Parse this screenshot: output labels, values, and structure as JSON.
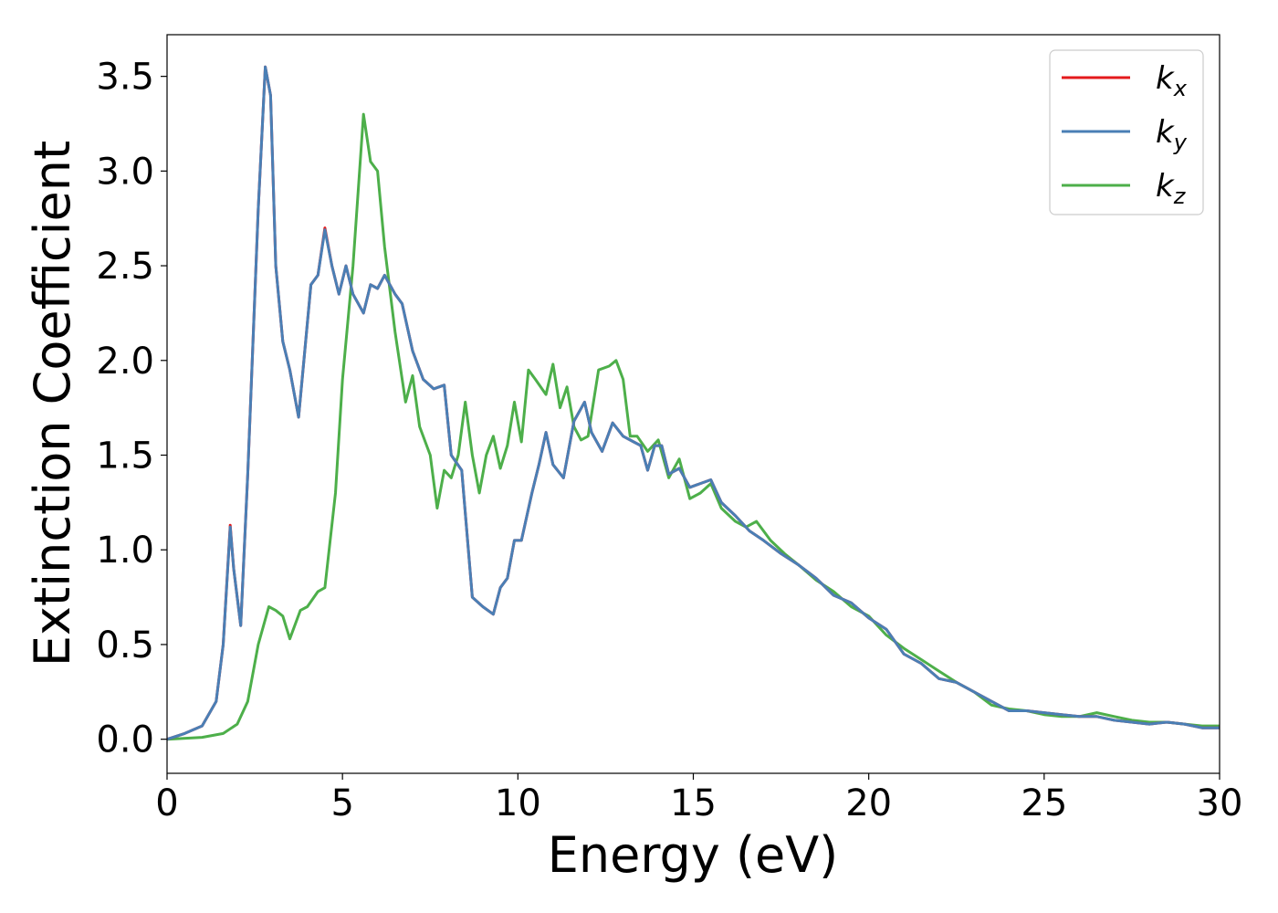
{
  "chart_data": {
    "type": "line",
    "title": "",
    "xlabel": "Energy (eV)",
    "ylabel": "Extinction Coefficient",
    "xlim": [
      0,
      30
    ],
    "ylim": [
      -0.18,
      3.72
    ],
    "xticks": [
      0,
      5,
      10,
      15,
      20,
      25,
      30
    ],
    "xtick_labels": [
      "0",
      "5",
      "10",
      "15",
      "20",
      "25",
      "30"
    ],
    "yticks": [
      0.0,
      0.5,
      1.0,
      1.5,
      2.0,
      2.5,
      3.0,
      3.5
    ],
    "ytick_labels": [
      "0.0",
      "0.5",
      "1.0",
      "1.5",
      "2.0",
      "2.5",
      "3.0",
      "3.5"
    ],
    "grid": false,
    "legend": {
      "position": "top-right"
    },
    "series": [
      {
        "name": "k",
        "sub": "x",
        "color": "#e41a1c",
        "x": [
          0,
          0.5,
          1.0,
          1.4,
          1.6,
          1.8,
          1.9,
          2.1,
          2.3,
          2.6,
          2.8,
          2.95,
          3.1,
          3.3,
          3.5,
          3.75,
          3.9,
          4.1,
          4.3,
          4.5,
          4.7,
          4.9,
          5.1,
          5.3,
          5.6,
          5.8,
          6.0,
          6.2,
          6.5,
          6.7,
          7.0,
          7.3,
          7.6,
          7.9,
          8.1,
          8.4,
          8.7,
          9.0,
          9.3,
          9.5,
          9.7,
          9.9,
          10.1,
          10.4,
          10.6,
          10.8,
          11.0,
          11.3,
          11.6,
          11.9,
          12.1,
          12.4,
          12.7,
          13.0,
          13.3,
          13.5,
          13.7,
          13.9,
          14.1,
          14.3,
          14.6,
          14.9,
          15.2,
          15.5,
          15.8,
          16.2,
          16.6,
          17.0,
          17.5,
          18.0,
          18.5,
          19.0,
          19.5,
          20.0,
          20.5,
          21.0,
          21.5,
          22.0,
          22.5,
          23.0,
          23.5,
          24.0,
          24.5,
          25.0,
          25.5,
          26.0,
          26.5,
          27.0,
          27.5,
          28.0,
          28.5,
          29.0,
          29.5,
          30.0
        ],
        "y": [
          0.0,
          0.03,
          0.07,
          0.2,
          0.5,
          1.13,
          0.9,
          0.6,
          1.4,
          2.8,
          3.55,
          3.4,
          2.5,
          2.1,
          1.95,
          1.7,
          2.0,
          2.4,
          2.45,
          2.7,
          2.5,
          2.35,
          2.5,
          2.35,
          2.25,
          2.4,
          2.38,
          2.45,
          2.35,
          2.3,
          2.05,
          1.9,
          1.85,
          1.87,
          1.5,
          1.42,
          0.75,
          0.7,
          0.66,
          0.8,
          0.85,
          1.05,
          1.05,
          1.3,
          1.45,
          1.62,
          1.45,
          1.38,
          1.68,
          1.78,
          1.62,
          1.52,
          1.67,
          1.6,
          1.57,
          1.55,
          1.42,
          1.55,
          1.55,
          1.4,
          1.43,
          1.33,
          1.35,
          1.37,
          1.25,
          1.18,
          1.1,
          1.05,
          0.98,
          0.92,
          0.85,
          0.76,
          0.72,
          0.64,
          0.58,
          0.45,
          0.4,
          0.32,
          0.3,
          0.25,
          0.2,
          0.15,
          0.15,
          0.14,
          0.13,
          0.12,
          0.12,
          0.1,
          0.09,
          0.08,
          0.09,
          0.08,
          0.06,
          0.06
        ]
      },
      {
        "name": "k",
        "sub": "y",
        "color": "#4a7fb5",
        "x": [
          0,
          0.5,
          1.0,
          1.4,
          1.6,
          1.8,
          1.9,
          2.1,
          2.3,
          2.6,
          2.8,
          2.95,
          3.1,
          3.3,
          3.5,
          3.75,
          3.9,
          4.1,
          4.3,
          4.5,
          4.7,
          4.9,
          5.1,
          5.3,
          5.6,
          5.8,
          6.0,
          6.2,
          6.5,
          6.7,
          7.0,
          7.3,
          7.6,
          7.9,
          8.1,
          8.4,
          8.7,
          9.0,
          9.3,
          9.5,
          9.7,
          9.9,
          10.1,
          10.4,
          10.6,
          10.8,
          11.0,
          11.3,
          11.6,
          11.9,
          12.1,
          12.4,
          12.7,
          13.0,
          13.3,
          13.5,
          13.7,
          13.9,
          14.1,
          14.3,
          14.6,
          14.9,
          15.2,
          15.5,
          15.8,
          16.2,
          16.6,
          17.0,
          17.5,
          18.0,
          18.5,
          19.0,
          19.5,
          20.0,
          20.5,
          21.0,
          21.5,
          22.0,
          22.5,
          23.0,
          23.5,
          24.0,
          24.5,
          25.0,
          25.5,
          26.0,
          26.5,
          27.0,
          27.5,
          28.0,
          28.5,
          29.0,
          29.5,
          30.0
        ],
        "y": [
          0.0,
          0.03,
          0.07,
          0.2,
          0.5,
          1.12,
          0.9,
          0.6,
          1.4,
          2.8,
          3.55,
          3.4,
          2.5,
          2.1,
          1.95,
          1.7,
          2.0,
          2.4,
          2.45,
          2.69,
          2.5,
          2.35,
          2.5,
          2.35,
          2.25,
          2.4,
          2.38,
          2.45,
          2.35,
          2.3,
          2.05,
          1.9,
          1.85,
          1.87,
          1.5,
          1.42,
          0.75,
          0.7,
          0.66,
          0.8,
          0.85,
          1.05,
          1.05,
          1.3,
          1.45,
          1.62,
          1.45,
          1.38,
          1.68,
          1.78,
          1.62,
          1.52,
          1.67,
          1.6,
          1.57,
          1.55,
          1.42,
          1.55,
          1.55,
          1.4,
          1.43,
          1.33,
          1.35,
          1.37,
          1.25,
          1.18,
          1.1,
          1.05,
          0.98,
          0.92,
          0.85,
          0.76,
          0.72,
          0.64,
          0.58,
          0.45,
          0.4,
          0.32,
          0.3,
          0.25,
          0.2,
          0.15,
          0.15,
          0.14,
          0.13,
          0.12,
          0.12,
          0.1,
          0.09,
          0.08,
          0.09,
          0.08,
          0.06,
          0.06
        ]
      },
      {
        "name": "k",
        "sub": "z",
        "color": "#4daf4a",
        "x": [
          0,
          1.0,
          1.6,
          2.0,
          2.3,
          2.6,
          2.9,
          3.1,
          3.3,
          3.5,
          3.8,
          4.0,
          4.3,
          4.5,
          4.8,
          5.0,
          5.3,
          5.6,
          5.8,
          6.0,
          6.2,
          6.5,
          6.8,
          7.0,
          7.2,
          7.5,
          7.7,
          7.9,
          8.1,
          8.3,
          8.5,
          8.7,
          8.9,
          9.1,
          9.3,
          9.5,
          9.7,
          9.9,
          10.1,
          10.3,
          10.5,
          10.8,
          11.0,
          11.2,
          11.4,
          11.6,
          11.8,
          12.0,
          12.3,
          12.6,
          12.8,
          13.0,
          13.2,
          13.4,
          13.7,
          14.0,
          14.3,
          14.6,
          14.9,
          15.2,
          15.5,
          15.8,
          16.2,
          16.5,
          16.8,
          17.2,
          17.6,
          18.0,
          18.5,
          19.0,
          19.5,
          20.0,
          20.5,
          21.0,
          21.5,
          22.0,
          22.5,
          23.0,
          23.5,
          24.0,
          24.5,
          25.0,
          25.5,
          26.0,
          26.5,
          27.0,
          27.5,
          28.0,
          28.5,
          29.0,
          29.5,
          30.0
        ],
        "y": [
          0.0,
          0.01,
          0.03,
          0.08,
          0.2,
          0.5,
          0.7,
          0.68,
          0.65,
          0.53,
          0.68,
          0.7,
          0.78,
          0.8,
          1.3,
          1.9,
          2.5,
          3.3,
          3.05,
          3.0,
          2.6,
          2.15,
          1.78,
          1.92,
          1.65,
          1.5,
          1.22,
          1.42,
          1.38,
          1.5,
          1.78,
          1.5,
          1.3,
          1.5,
          1.6,
          1.43,
          1.55,
          1.78,
          1.57,
          1.95,
          1.9,
          1.82,
          1.98,
          1.75,
          1.86,
          1.65,
          1.58,
          1.6,
          1.95,
          1.97,
          2.0,
          1.9,
          1.6,
          1.6,
          1.52,
          1.58,
          1.38,
          1.48,
          1.27,
          1.3,
          1.35,
          1.22,
          1.15,
          1.12,
          1.15,
          1.05,
          0.98,
          0.92,
          0.84,
          0.78,
          0.7,
          0.65,
          0.55,
          0.48,
          0.42,
          0.36,
          0.3,
          0.25,
          0.18,
          0.16,
          0.15,
          0.13,
          0.12,
          0.12,
          0.14,
          0.12,
          0.1,
          0.09,
          0.09,
          0.08,
          0.07,
          0.07
        ]
      }
    ]
  }
}
